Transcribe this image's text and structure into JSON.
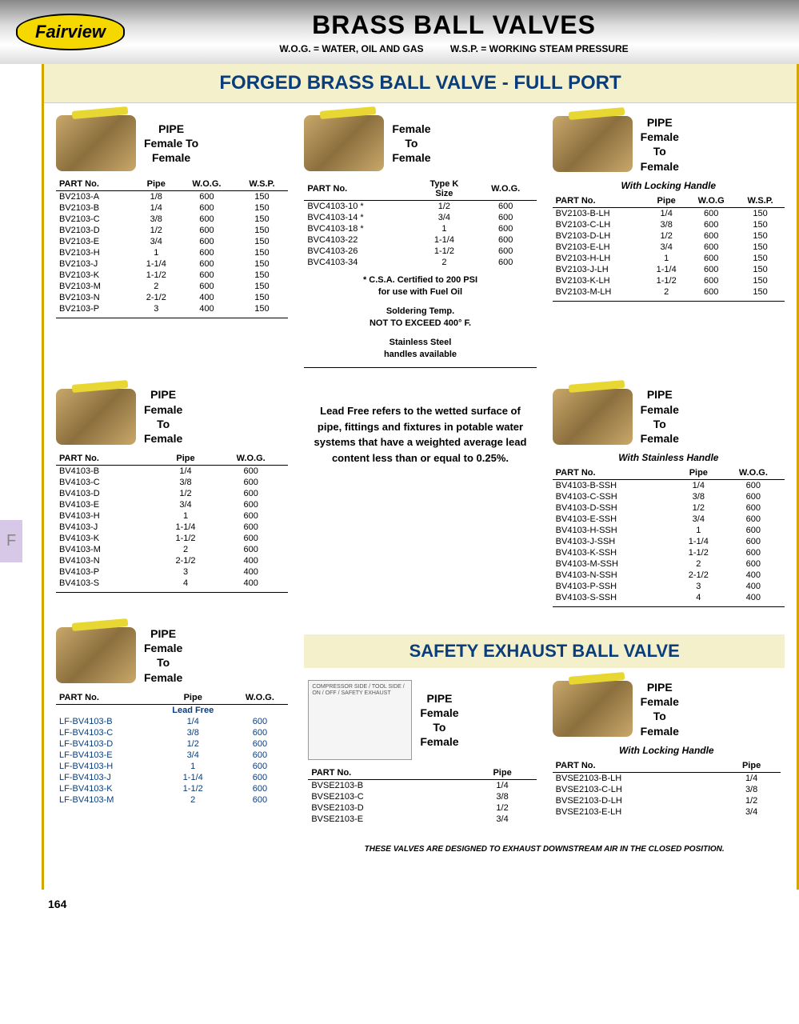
{
  "header": {
    "logo": "Fairview",
    "title": "BRASS BALL VALVES",
    "sub1": "W.O.G. = WATER, OIL AND GAS",
    "sub2": "W.S.P. = WORKING STEAM PRESSURE"
  },
  "tab_label": "F",
  "section1_title": "FORGED BRASS BALL VALVE - FULL PORT",
  "pipe_ftf": "PIPE\nFemale To\nFemale",
  "pipe_ftf2": "PIPE\nFemale\nTo\nFemale",
  "female_tf": "Female\nTo\nFemale",
  "with_locking": "With Locking Handle",
  "with_stainless": "With Stainless Handle",
  "table1": {
    "headers": [
      "PART No.",
      "Pipe",
      "W.O.G.",
      "W.S.P."
    ],
    "rows": [
      [
        "BV2103-A",
        "1/8",
        "600",
        "150"
      ],
      [
        "BV2103-B",
        "1/4",
        "600",
        "150"
      ],
      [
        "BV2103-C",
        "3/8",
        "600",
        "150"
      ],
      [
        "BV2103-D",
        "1/2",
        "600",
        "150"
      ],
      [
        "BV2103-E",
        "3/4",
        "600",
        "150"
      ],
      [
        "BV2103-H",
        "1",
        "600",
        "150"
      ],
      [
        "BV2103-J",
        "1-1/4",
        "600",
        "150"
      ],
      [
        "BV2103-K",
        "1-1/2",
        "600",
        "150"
      ],
      [
        "BV2103-M",
        "2",
        "600",
        "150"
      ],
      [
        "BV2103-N",
        "2-1/2",
        "400",
        "150"
      ],
      [
        "BV2103-P",
        "3",
        "400",
        "150"
      ]
    ]
  },
  "table2": {
    "headers": [
      "PART No.",
      "Type K\nSize",
      "W.O.G."
    ],
    "rows": [
      [
        "BVC4103-10 *",
        "1/2",
        "600"
      ],
      [
        "BVC4103-14 *",
        "3/4",
        "600"
      ],
      [
        "BVC4103-18 *",
        "1",
        "600"
      ],
      [
        "BVC4103-22",
        "1-1/4",
        "600"
      ],
      [
        "BVC4103-26",
        "1-1/2",
        "600"
      ],
      [
        "BVC4103-34",
        "2",
        "600"
      ]
    ]
  },
  "note_csa": "* C.S.A. Certified to 200 PSI\nfor use with Fuel Oil",
  "note_solder": "Soldering Temp.\nNOT TO EXCEED 400° F.",
  "note_ss": "Stainless Steel\nhandles available",
  "table3": {
    "headers": [
      "PART No.",
      "Pipe",
      "W.O.G",
      "W.S.P."
    ],
    "rows": [
      [
        "BV2103-B-LH",
        "1/4",
        "600",
        "150"
      ],
      [
        "BV2103-C-LH",
        "3/8",
        "600",
        "150"
      ],
      [
        "BV2103-D-LH",
        "1/2",
        "600",
        "150"
      ],
      [
        "BV2103-E-LH",
        "3/4",
        "600",
        "150"
      ],
      [
        "BV2103-H-LH",
        "1",
        "600",
        "150"
      ],
      [
        "BV2103-J-LH",
        "1-1/4",
        "600",
        "150"
      ],
      [
        "BV2103-K-LH",
        "1-1/2",
        "600",
        "150"
      ],
      [
        "BV2103-M-LH",
        "2",
        "600",
        "150"
      ]
    ]
  },
  "table4": {
    "headers": [
      "PART No.",
      "Pipe",
      "W.O.G."
    ],
    "rows": [
      [
        "BV4103-B",
        "1/4",
        "600"
      ],
      [
        "BV4103-C",
        "3/8",
        "600"
      ],
      [
        "BV4103-D",
        "1/2",
        "600"
      ],
      [
        "BV4103-E",
        "3/4",
        "600"
      ],
      [
        "BV4103-H",
        "1",
        "600"
      ],
      [
        "BV4103-J",
        "1-1/4",
        "600"
      ],
      [
        "BV4103-K",
        "1-1/2",
        "600"
      ],
      [
        "BV4103-M",
        "2",
        "600"
      ],
      [
        "BV4103-N",
        "2-1/2",
        "400"
      ],
      [
        "BV4103-P",
        "3",
        "400"
      ],
      [
        "BV4103-S",
        "4",
        "400"
      ]
    ]
  },
  "lead_free_text": "Lead Free refers to the wetted surface of pipe, fittings and fixtures in potable water systems that have a weighted average lead content less than or equal to 0.25%.",
  "table5": {
    "headers": [
      "PART No.",
      "Pipe",
      "W.O.G."
    ],
    "rows": [
      [
        "BV4103-B-SSH",
        "1/4",
        "600"
      ],
      [
        "BV4103-C-SSH",
        "3/8",
        "600"
      ],
      [
        "BV4103-D-SSH",
        "1/2",
        "600"
      ],
      [
        "BV4103-E-SSH",
        "3/4",
        "600"
      ],
      [
        "BV4103-H-SSH",
        "1",
        "600"
      ],
      [
        "BV4103-J-SSH",
        "1-1/4",
        "600"
      ],
      [
        "BV4103-K-SSH",
        "1-1/2",
        "600"
      ],
      [
        "BV4103-M-SSH",
        "2",
        "600"
      ],
      [
        "BV4103-N-SSH",
        "2-1/2",
        "400"
      ],
      [
        "BV4103-P-SSH",
        "3",
        "400"
      ],
      [
        "BV4103-S-SSH",
        "4",
        "400"
      ]
    ]
  },
  "table6": {
    "headers": [
      "PART No.",
      "Pipe",
      "W.O.G."
    ],
    "lead_free_label": "Lead Free",
    "rows": [
      [
        "LF-BV4103-B",
        "1/4",
        "600"
      ],
      [
        "LF-BV4103-C",
        "3/8",
        "600"
      ],
      [
        "LF-BV4103-D",
        "1/2",
        "600"
      ],
      [
        "LF-BV4103-E",
        "3/4",
        "600"
      ],
      [
        "LF-BV4103-H",
        "1",
        "600"
      ],
      [
        "LF-BV4103-J",
        "1-1/4",
        "600"
      ],
      [
        "LF-BV4103-K",
        "1-1/2",
        "600"
      ],
      [
        "LF-BV4103-M",
        "2",
        "600"
      ]
    ]
  },
  "section2_title": "SAFETY EXHAUST BALL VALVE",
  "diagram_text": "COMPRESSOR SIDE / TOOL SIDE / ON / OFF / SAFETY EXHAUST",
  "table7": {
    "headers": [
      "PART No.",
      "Pipe"
    ],
    "rows": [
      [
        "BVSE2103-B",
        "1/4"
      ],
      [
        "BVSE2103-C",
        "3/8"
      ],
      [
        "BVSE2103-D",
        "1/2"
      ],
      [
        "BVSE2103-E",
        "3/4"
      ]
    ]
  },
  "table8": {
    "headers": [
      "PART No.",
      "Pipe"
    ],
    "rows": [
      [
        "BVSE2103-B-LH",
        "1/4"
      ],
      [
        "BVSE2103-C-LH",
        "3/8"
      ],
      [
        "BVSE2103-D-LH",
        "1/2"
      ],
      [
        "BVSE2103-E-LH",
        "3/4"
      ]
    ]
  },
  "footer_note": "THESE VALVES ARE DESIGNED TO EXHAUST DOWNSTREAM AIR IN THE CLOSED POSITION.",
  "page_num": "164"
}
